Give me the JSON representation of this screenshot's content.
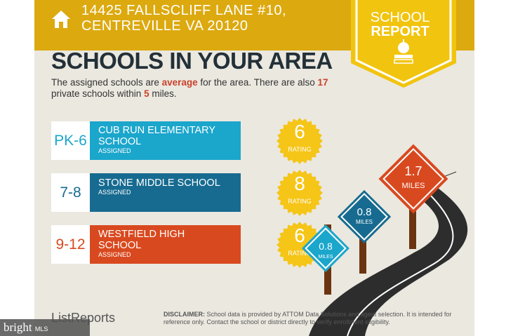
{
  "header": {
    "address_line1": "14425 FALLSCLIFF LANE #10,",
    "address_line2": "CENTREVILLE VA 20120",
    "ribbon_line1": "SCHOOL",
    "ribbon_line2": "REPORT"
  },
  "main": {
    "title": "SCHOOLS IN YOUR AREA",
    "summary": {
      "p1": "The assigned schools are ",
      "rating_word": "average",
      "p2": " for the area. There are also ",
      "private_count": "17",
      "p3": " private schools within ",
      "radius": "5",
      "p4": " miles."
    }
  },
  "schools": [
    {
      "grade": "PK-6",
      "name": "CUB RUN ELEMENTARY SCHOOL",
      "status": "ASSIGNED",
      "rating": "6",
      "rating_label": "RATING",
      "color": "#1ba6cc",
      "distance": "0.8",
      "distance_unit": "MILES"
    },
    {
      "grade": "7-8",
      "name": "STONE MIDDLE SCHOOL",
      "status": "ASSIGNED",
      "rating": "8",
      "rating_label": "RATING",
      "color": "#176b90",
      "distance": "0.8",
      "distance_unit": "MILES"
    },
    {
      "grade": "9-12",
      "name": "WESTFIELD HIGH SCHOOL",
      "status": "ASSIGNED",
      "rating": "6",
      "rating_label": "RATING",
      "color": "#d9491f",
      "distance": "1.7",
      "distance_unit": "MILES"
    }
  ],
  "footer": {
    "logo": "ListReports",
    "disclaimer_label": "DISCLAIMER:",
    "disclaimer": " School data is provided by ATTOM Data Solutions and agent selection. It is intended for reference only. Contact the school or district directly to verify enrollment eligibility.",
    "watermark": "bright",
    "watermark_suffix": "MLS"
  }
}
